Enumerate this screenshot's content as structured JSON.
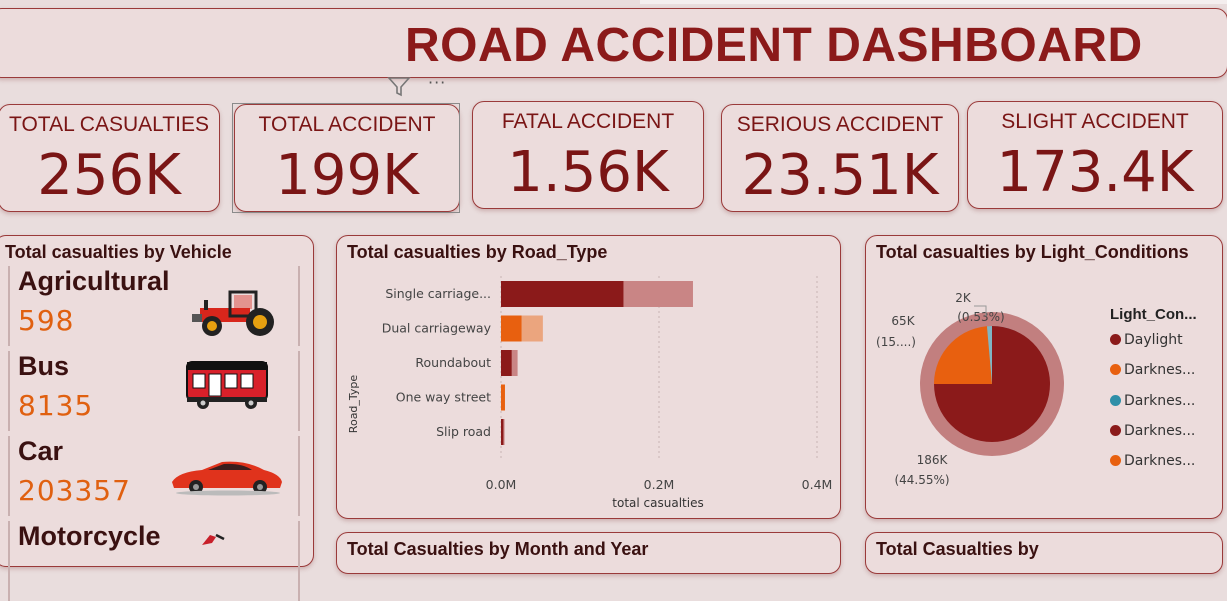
{
  "header": {
    "title": "ROAD ACCIDENT DASHBOARD",
    "more_label": "···"
  },
  "kpis": [
    {
      "label": "TOTAL CASUALTIES",
      "value": "256K"
    },
    {
      "label": "TOTAL ACCIDENT",
      "value": "199K"
    },
    {
      "label": "FATAL ACCIDENT",
      "value": "1.56K"
    },
    {
      "label": "SERIOUS ACCIDENT",
      "value": "23.51K"
    },
    {
      "label": "SLIGHT ACCIDENT",
      "value": "173.4K"
    }
  ],
  "vehicle_panel": {
    "title": "Total casualties by Vehicle",
    "items": [
      {
        "name": "Agricultural",
        "value": "598",
        "icon": "tractor-icon"
      },
      {
        "name": "Bus",
        "value": "8135",
        "icon": "bus-icon"
      },
      {
        "name": "Car",
        "value": "203357",
        "icon": "car-icon"
      },
      {
        "name": "Motorcycle",
        "value": "",
        "icon": "motorcycle-icon"
      }
    ]
  },
  "road_panel": {
    "title": "Total casualties by Road_Type"
  },
  "light_panel": {
    "title": "Total casualties by Light_Conditions",
    "legend_title": "Light_Con...",
    "legend": [
      {
        "label": "Daylight",
        "color": "#8b1a1a"
      },
      {
        "label": "Darknes...",
        "color": "#e8600f"
      },
      {
        "label": "Darknes...",
        "color": "#2f8fa8"
      },
      {
        "label": "Darknes...",
        "color": "#8b1a1a"
      },
      {
        "label": "Darknes...",
        "color": "#e8600f"
      }
    ]
  },
  "month_panel": {
    "title": "Total Casualties by Month and Year"
  },
  "other_panel": {
    "title": "Total Casualties by"
  },
  "colors": {
    "brand": "#8b1a1a",
    "accent": "#e8600f",
    "bg": "#e9dddd"
  },
  "chart_data": [
    {
      "type": "bar",
      "orientation": "horizontal",
      "title": "Total casualties by Road_Type",
      "xlabel": "total casualties",
      "ylabel": "Road_Type",
      "categories": [
        "Single carriage...",
        "Dual carriageway",
        "Roundabout",
        "One way street",
        "Slip road"
      ],
      "series": [
        {
          "values": [
            155000,
            26000,
            13500,
            5000,
            3000
          ],
          "color": "#8b1a1a"
        },
        {
          "values": [
            243000,
            53000,
            21000,
            5000,
            4500
          ],
          "color": "#c98585"
        }
      ],
      "xticks": [
        "0.0M",
        "0.2M",
        "0.4M"
      ],
      "xlim": [
        0,
        400000
      ]
    },
    {
      "type": "pie",
      "title": "Total casualties by Light_Conditions",
      "slices": [
        {
          "label": "Daylight",
          "value": 186000,
          "pct": 44.55
        },
        {
          "label": "Darknes...",
          "value": 65000
        },
        {
          "label": "Darknes...",
          "value": 2000,
          "pct": 0.53
        }
      ],
      "data_labels": [
        {
          "line1": "2K",
          "line2": "(0.53%)"
        },
        {
          "line1": "65K",
          "line2": "(15....)"
        },
        {
          "line1": "186K",
          "line2": "(44.55%)"
        }
      ]
    }
  ]
}
